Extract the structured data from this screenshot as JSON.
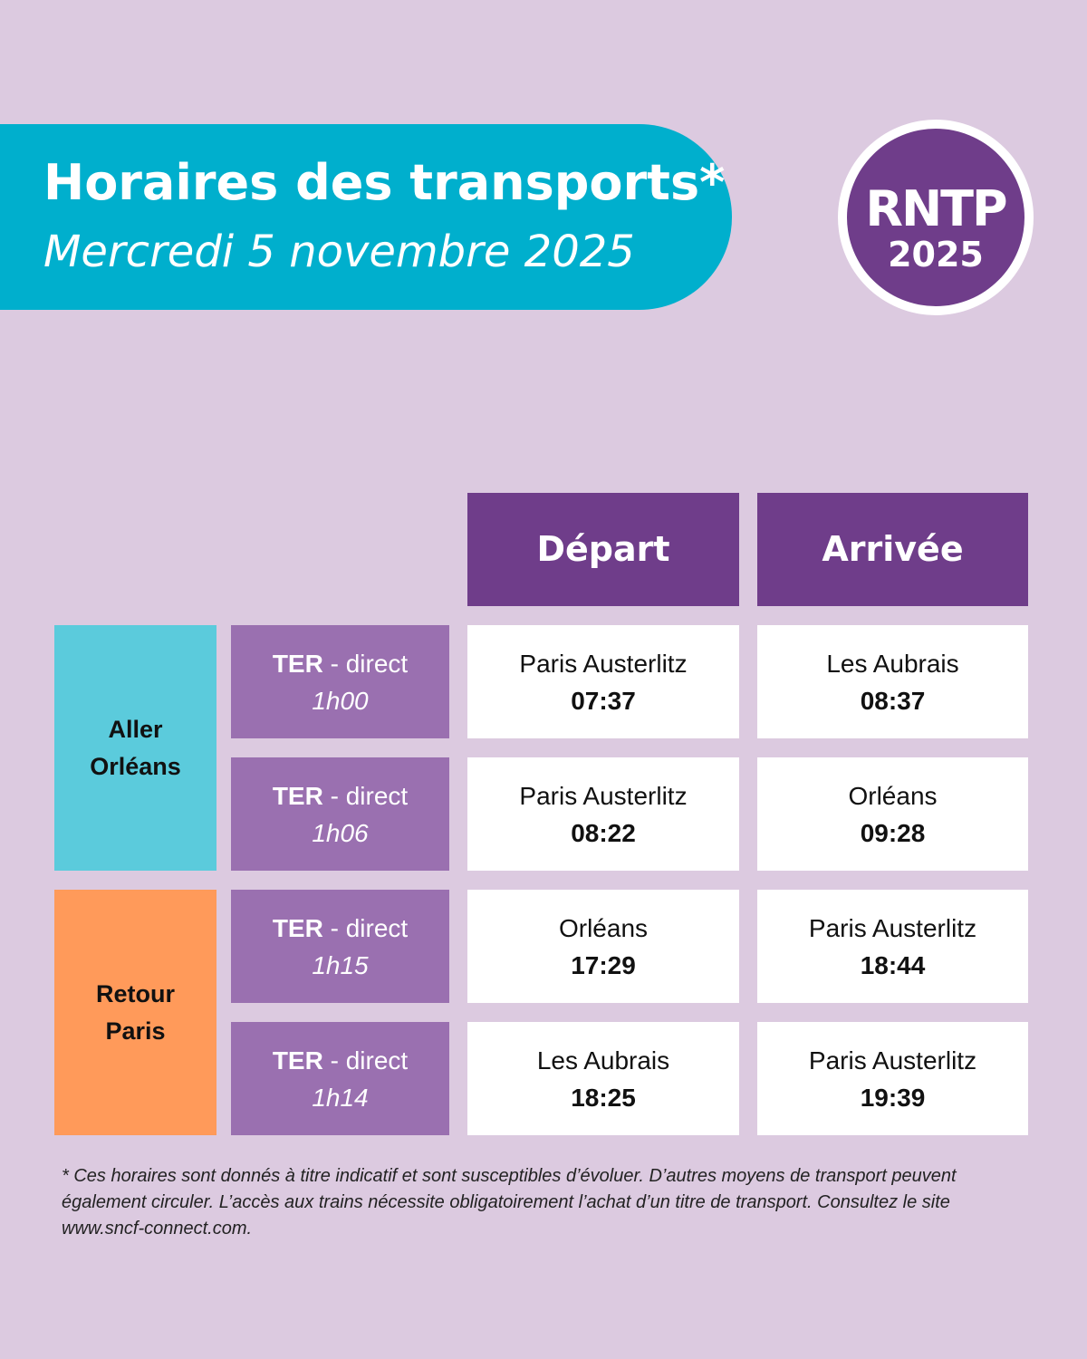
{
  "header": {
    "title": "Horaires des transports*",
    "subtitle": "Mercredi 5 novembre 2025"
  },
  "logo": {
    "line1": "RNTP",
    "line2": "2025"
  },
  "colors": {
    "background": "#dccae0",
    "banner": "#00afcd",
    "purple": "#6f3d8a",
    "train": "#9a70b0",
    "aller": "#5bcbdc",
    "retour": "#ff9a5a"
  },
  "table": {
    "columns": [
      "Départ",
      "Arrivée"
    ],
    "groups": [
      {
        "line1": "Aller",
        "line2": "Orléans"
      },
      {
        "line1": "Retour",
        "line2": "Paris"
      }
    ],
    "rows": [
      {
        "type": "TER",
        "mode": " - direct",
        "duration": "1h00",
        "dep_station": "Paris Austerlitz",
        "dep_time": "07:37",
        "arr_station": "Les Aubrais",
        "arr_time": "08:37"
      },
      {
        "type": "TER",
        "mode": " - direct",
        "duration": "1h06",
        "dep_station": "Paris Austerlitz",
        "dep_time": "08:22",
        "arr_station": "Orléans",
        "arr_time": "09:28"
      },
      {
        "type": "TER",
        "mode": " - direct",
        "duration": "1h15",
        "dep_station": "Orléans",
        "dep_time": "17:29",
        "arr_station": "Paris Austerlitz",
        "arr_time": "18:44"
      },
      {
        "type": "TER",
        "mode": " - direct",
        "duration": "1h14",
        "dep_station": "Les Aubrais",
        "dep_time": "18:25",
        "arr_station": "Paris Austerlitz",
        "arr_time": "19:39"
      }
    ]
  },
  "footer": "* Ces horaires sont donnés à titre indicatif et sont susceptibles d’évoluer. D’autres moyens de transport peuvent également circuler. L’accès aux trains nécessite obligatoirement l’achat d’un titre de transport. Consultez le site www.sncf-connect.com."
}
